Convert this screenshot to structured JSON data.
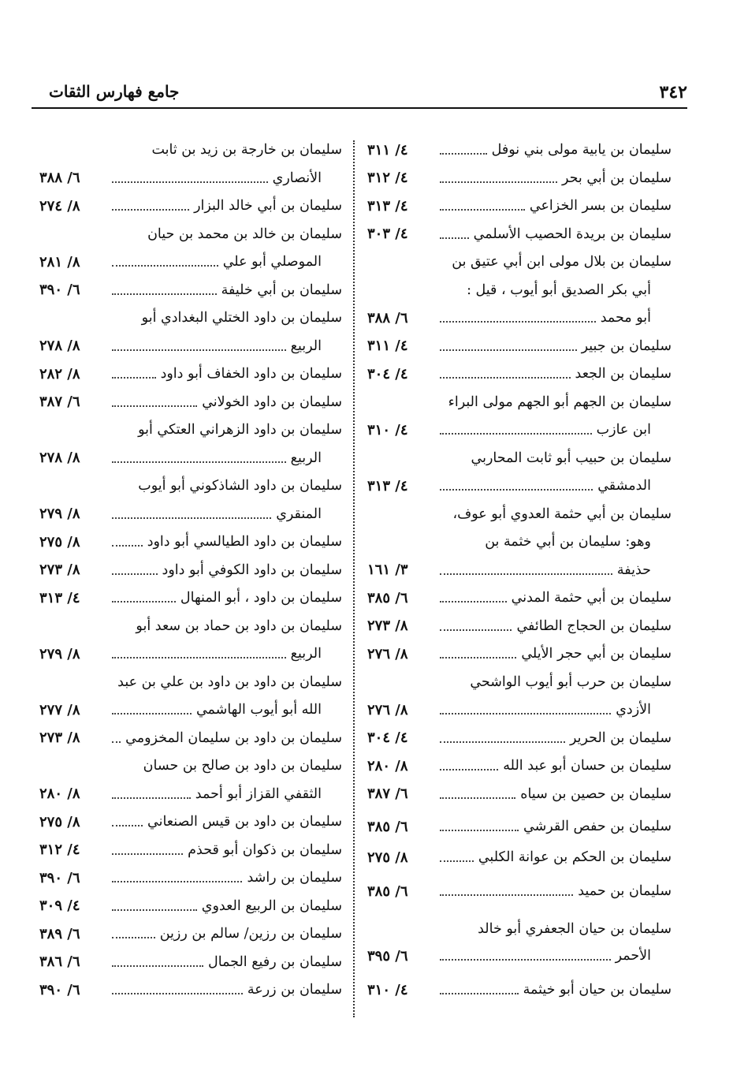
{
  "header": {
    "page_number": "٣٤٢",
    "book_title": "جامع فهارس الثقات"
  },
  "right_column": [
    {
      "t": "سليمان بن يابية مولى بني نوفل",
      "ref": "٤/ ٣١١"
    },
    {
      "t": "سليمان بن أبي بحر",
      "ref": "٤/ ٣١٢"
    },
    {
      "t": "سليمان بن بسر الخزاعي",
      "ref": "٤/ ٣١٣"
    },
    {
      "t": "سليمان بن بريدة الحصيب الأسلمي",
      "ref": "٤/ ٣٠٣"
    },
    {
      "t": "سليمان بن بلال مولى ابن أبي عتيق بن"
    },
    {
      "t": "أبي بكر الصديق أبو أيوب ، قيل :",
      "cont": true
    },
    {
      "t": "أبو محمد",
      "ref": "٦/ ٣٨٨",
      "cont": true
    },
    {
      "t": "سليمان بن جبير",
      "ref": "٤/ ٣١١"
    },
    {
      "t": "سليمان بن الجعد",
      "ref": "٤/ ٣٠٤"
    },
    {
      "t": "سليمان بن الجهم أبو الجهم مولى البراء"
    },
    {
      "t": "ابن عازب",
      "ref": "٤/ ٣١٠",
      "cont": true
    },
    {
      "t": "سليمان بن حبيب أبو ثابت المحاربي"
    },
    {
      "t": "الدمشقي",
      "ref": "٤/ ٣١٣",
      "cont": true
    },
    {
      "t": "سليمان بن أبي حثمة العدوي أبو عوف،"
    },
    {
      "t": "وهو:  سليمان بن أبي خثمة بن",
      "cont": true
    },
    {
      "t": "حذيفة",
      "ref": "٣/ ١٦١",
      "cont": true
    },
    {
      "t": "سليمان بن أبي حثمة المدني",
      "ref": "٦/ ٣٨٥"
    },
    {
      "t": "سليمان بن الحجاج الطائفي",
      "ref": "٨/ ٢٧٣"
    },
    {
      "t": "سليمان بن أبي حجر الأيلي",
      "ref": "٨/ ٢٧٦"
    },
    {
      "t": "سليمان بن حرب أبو أيوب الواشحي"
    },
    {
      "t": "الأزدي",
      "ref": "٨/ ٢٧٦",
      "cont": true
    },
    {
      "t": "سليمان بن الحرير",
      "ref": "٤/ ٣٠٤"
    },
    {
      "t": "سليمان بن حسان أبو عبد الله",
      "ref": "٨/ ٢٨٠"
    },
    {
      "t": "سليمان بن حصين بن سياه",
      "ref": "٦/ ٣٨٧"
    },
    {
      "t": "سليمان بن حفص القرشي",
      "ref": "٦/ ٣٨٥"
    },
    {
      "t": "سليمان بن الحكم بن عوانة الكلبي",
      "ref": "٨/ ٢٧٥"
    },
    {
      "t": "سليمان بن حميد",
      "ref": "٦/ ٣٨٥"
    },
    {
      "t": "سليمان بن حيان الجعفري أبو خالد"
    },
    {
      "t": "الأحمر",
      "ref": "٦/ ٣٩٥",
      "cont": true
    },
    {
      "t": "سليمان بن حيان أبو خيثمة",
      "ref": "٤/ ٣١٠"
    }
  ],
  "left_column": [
    {
      "t": "سليمان بن خارجة بن زيد بن ثابت"
    },
    {
      "t": "الأنصاري",
      "ref": "٦/ ٣٨٨",
      "cont": true
    },
    {
      "t": "سليمان بن أبي خالد البزار",
      "ref": "٨/ ٢٧٤"
    },
    {
      "t": "سليمان بن خالد بن محمد بن حيان"
    },
    {
      "t": "الموصلي أبو علي",
      "ref": "٨/ ٢٨١",
      "cont": true
    },
    {
      "t": "سليمان بن أبي خليفة",
      "ref": "٦/ ٣٩٠"
    },
    {
      "t": "سليمان بن داود الختلي البغدادي أبو"
    },
    {
      "t": "الربيع",
      "ref": "٨/ ٢٧٨",
      "cont": true
    },
    {
      "t": "سليمان بن داود الخفاف أبو داود",
      "ref": "٨/ ٢٨٢"
    },
    {
      "t": "سليمان بن داود الخولاني",
      "ref": "٦/ ٣٨٧"
    },
    {
      "t": "سليمان بن داود الزهراني العتكي أبو"
    },
    {
      "t": "الربيع",
      "ref": "٨/ ٢٧٨",
      "cont": true
    },
    {
      "t": "سليمان بن داود الشاذكوني أبو أيوب"
    },
    {
      "t": "المنقري",
      "ref": "٨/ ٢٧٩",
      "cont": true
    },
    {
      "t": "سليمان بن داود الطيالسي أبو داود",
      "ref": "٨/ ٢٧٥"
    },
    {
      "t": "سليمان بن داود الكوفي أبو داود",
      "ref": "٨/ ٢٧٣"
    },
    {
      "t": "سليمان بن داود ، أبو المنهال",
      "ref": "٤/ ٣١٣"
    },
    {
      "t": "سليمان بن داود بن حماد بن سعد أبو"
    },
    {
      "t": "الربيع",
      "ref": "٨/ ٢٧٩",
      "cont": true
    },
    {
      "t": "سليمان بن داود بن داود بن علي بن عبد"
    },
    {
      "t": "الله أبو أيوب الهاشمي",
      "ref": "٨/ ٢٧٧",
      "cont": true
    },
    {
      "t": "سليمان بن داود بن سليمان المخزومي",
      "ref": "٨/ ٢٧٣"
    },
    {
      "t": "سليمان بن داود بن صالح بن حسان"
    },
    {
      "t": "الثقفي القزاز أبو أحمد",
      "ref": "٨/ ٢٨٠",
      "cont": true
    },
    {
      "t": "سليمان بن داود بن قيس الصنعاني",
      "ref": "٨/ ٢٧٥"
    },
    {
      "t": "سليمان بن ذكوان أبو قحذم",
      "ref": "٤/ ٣١٢"
    },
    {
      "t": "سليمان بن راشد",
      "ref": "٦/ ٣٩٠"
    },
    {
      "t": "سليمان بن الربيع العدوي",
      "ref": "٤/ ٣٠٩"
    },
    {
      "t": "سليمان بن رزين/ سالم بن رزين",
      "ref": "٦/ ٣٨٩"
    },
    {
      "t": "سليمان بن رفيع الجمال",
      "ref": "٦/ ٣٨٦"
    },
    {
      "t": "سليمان بن زرعة",
      "ref": "٦/ ٣٩٠"
    }
  ]
}
